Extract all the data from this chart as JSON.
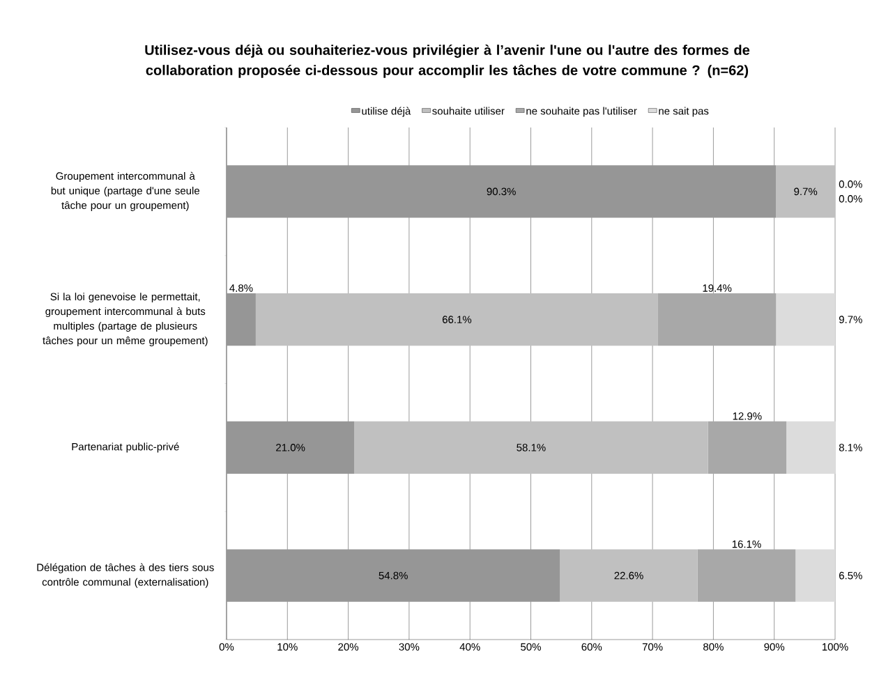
{
  "chart_data": {
    "type": "bar",
    "orientation": "horizontal",
    "stacked": true,
    "title": "Utilisez-vous déjà ou  souhaiteriez-vous privilégier à l’avenir  l'une ou l'autre des formes de collaboration proposée ci-dessous pour accomplir les tâches de votre commune ? (n=62)",
    "categories": [
      "Groupement intercommunal à but unique (partage d'une seule tâche pour un groupement)",
      "Si la loi genevoise le permettait, groupement intercommunal à buts multiples (partage de plusieurs tâches pour un même groupement)",
      "Partenariat public-privé",
      "Délégation de tâches à des tiers sous contrôle communal (externalisation)"
    ],
    "series": [
      {
        "name": "utilise déjà",
        "color": "#969696",
        "values": [
          90.3,
          4.8,
          21.0,
          54.8
        ],
        "value_labels": [
          "90.3%",
          "4.8%",
          "21.0%",
          "54.8%"
        ]
      },
      {
        "name": "souhaite utiliser",
        "color": "#c0c0c0",
        "values": [
          9.7,
          66.1,
          58.1,
          22.6
        ],
        "value_labels": [
          "9.7%",
          "66.1%",
          "58.1%",
          "22.6%"
        ]
      },
      {
        "name": "ne souhaite pas l'utiliser",
        "color": "#a8a8a8",
        "values": [
          0.0,
          19.4,
          12.9,
          16.1
        ],
        "value_labels": [
          "0.0%",
          "19.4%",
          "12.9%",
          "16.1%"
        ]
      },
      {
        "name": "ne sait pas",
        "color": "#dcdcdc",
        "values": [
          0.0,
          9.7,
          8.1,
          6.5
        ],
        "value_labels": [
          "0.0%",
          "9.7%",
          "8.1%",
          "6.5%"
        ]
      }
    ],
    "xlim": [
      0,
      100
    ],
    "xticks": [
      {
        "value": 0,
        "label": "0%"
      },
      {
        "value": 10,
        "label": "10%"
      },
      {
        "value": 20,
        "label": "20%"
      },
      {
        "value": 30,
        "label": "30%"
      },
      {
        "value": 40,
        "label": "40%"
      },
      {
        "value": 50,
        "label": "50%"
      },
      {
        "value": 60,
        "label": "60%"
      },
      {
        "value": 70,
        "label": "70%"
      },
      {
        "value": 80,
        "label": "80%"
      },
      {
        "value": 90,
        "label": "90%"
      },
      {
        "value": 100,
        "label": "100%"
      }
    ],
    "grid": "x",
    "legend": "top"
  }
}
